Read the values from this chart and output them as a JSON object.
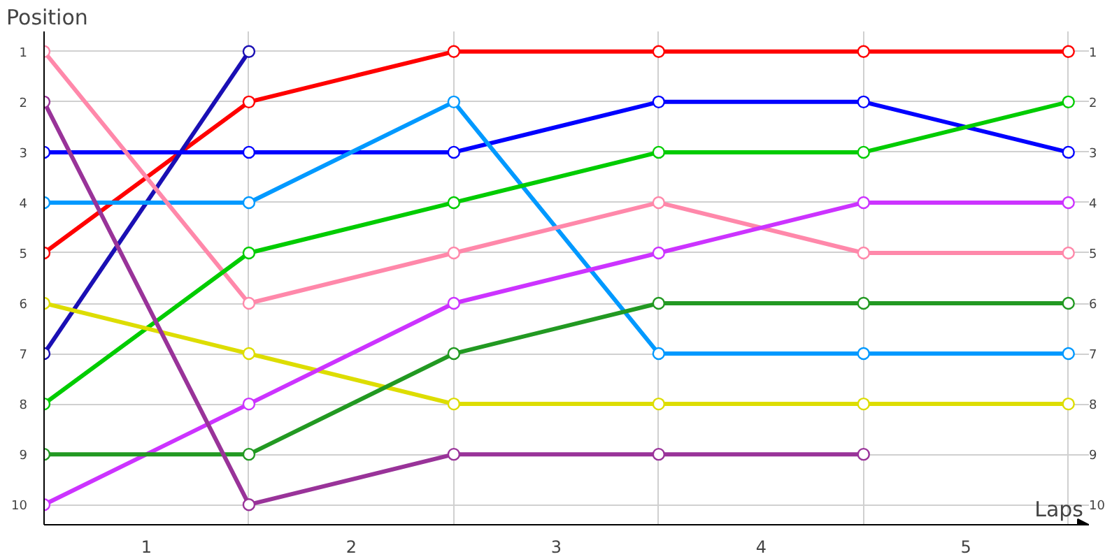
{
  "chart_data": {
    "type": "line",
    "ylabel": "Position",
    "xlabel": "Laps",
    "x": [
      0,
      1,
      2,
      3,
      4,
      5
    ],
    "xlim": [
      0,
      5.1
    ],
    "ylim": [
      10.4,
      0.6
    ],
    "y2lim": [
      10.4,
      0.6
    ],
    "xticks": [
      {
        "value": 0,
        "label": null
      },
      {
        "value": 0.5,
        "label": "1"
      },
      {
        "value": 1,
        "label": null
      },
      {
        "value": 1.5,
        "label": "2"
      },
      {
        "value": 2,
        "label": null
      },
      {
        "value": 2.5,
        "label": "3"
      },
      {
        "value": 3,
        "label": null
      },
      {
        "value": 3.5,
        "label": "4"
      },
      {
        "value": 4,
        "label": null
      },
      {
        "value": 4.5,
        "label": "5"
      },
      {
        "value": 5,
        "label": null
      }
    ],
    "yticks": [
      1,
      2,
      3,
      4,
      5,
      6,
      7,
      8,
      9,
      10
    ],
    "y2ticks": [
      1,
      2,
      3,
      4,
      5,
      6,
      7,
      8,
      9,
      10
    ],
    "grid": true,
    "marker": "circle",
    "line_style": "solid",
    "series": [
      {
        "color": "#ff0000",
        "values": [
          5,
          2,
          1,
          1,
          1,
          1
        ]
      },
      {
        "color": "#1a0fb4",
        "values": [
          7,
          1,
          null,
          null,
          null,
          null
        ]
      },
      {
        "color": "#0000ff",
        "values": [
          3,
          3,
          3,
          2,
          2,
          3
        ]
      },
      {
        "color": "#0099ff",
        "values": [
          4,
          4,
          2,
          7,
          7,
          7
        ]
      },
      {
        "color": "#ff88aa",
        "values": [
          1,
          6,
          5,
          4,
          5,
          5
        ]
      },
      {
        "color": "#00cc00",
        "values": [
          8,
          5,
          4,
          3,
          3,
          2
        ]
      },
      {
        "color": "#dddd00",
        "values": [
          6,
          7,
          8,
          8,
          8,
          8
        ]
      },
      {
        "color": "#cc33ff",
        "values": [
          10,
          8,
          6,
          5,
          4,
          4
        ]
      },
      {
        "color": "#229922",
        "values": [
          9,
          9,
          7,
          6,
          6,
          6
        ]
      },
      {
        "color": "#993399",
        "values": [
          2,
          10,
          9,
          9,
          9,
          null
        ]
      }
    ]
  }
}
